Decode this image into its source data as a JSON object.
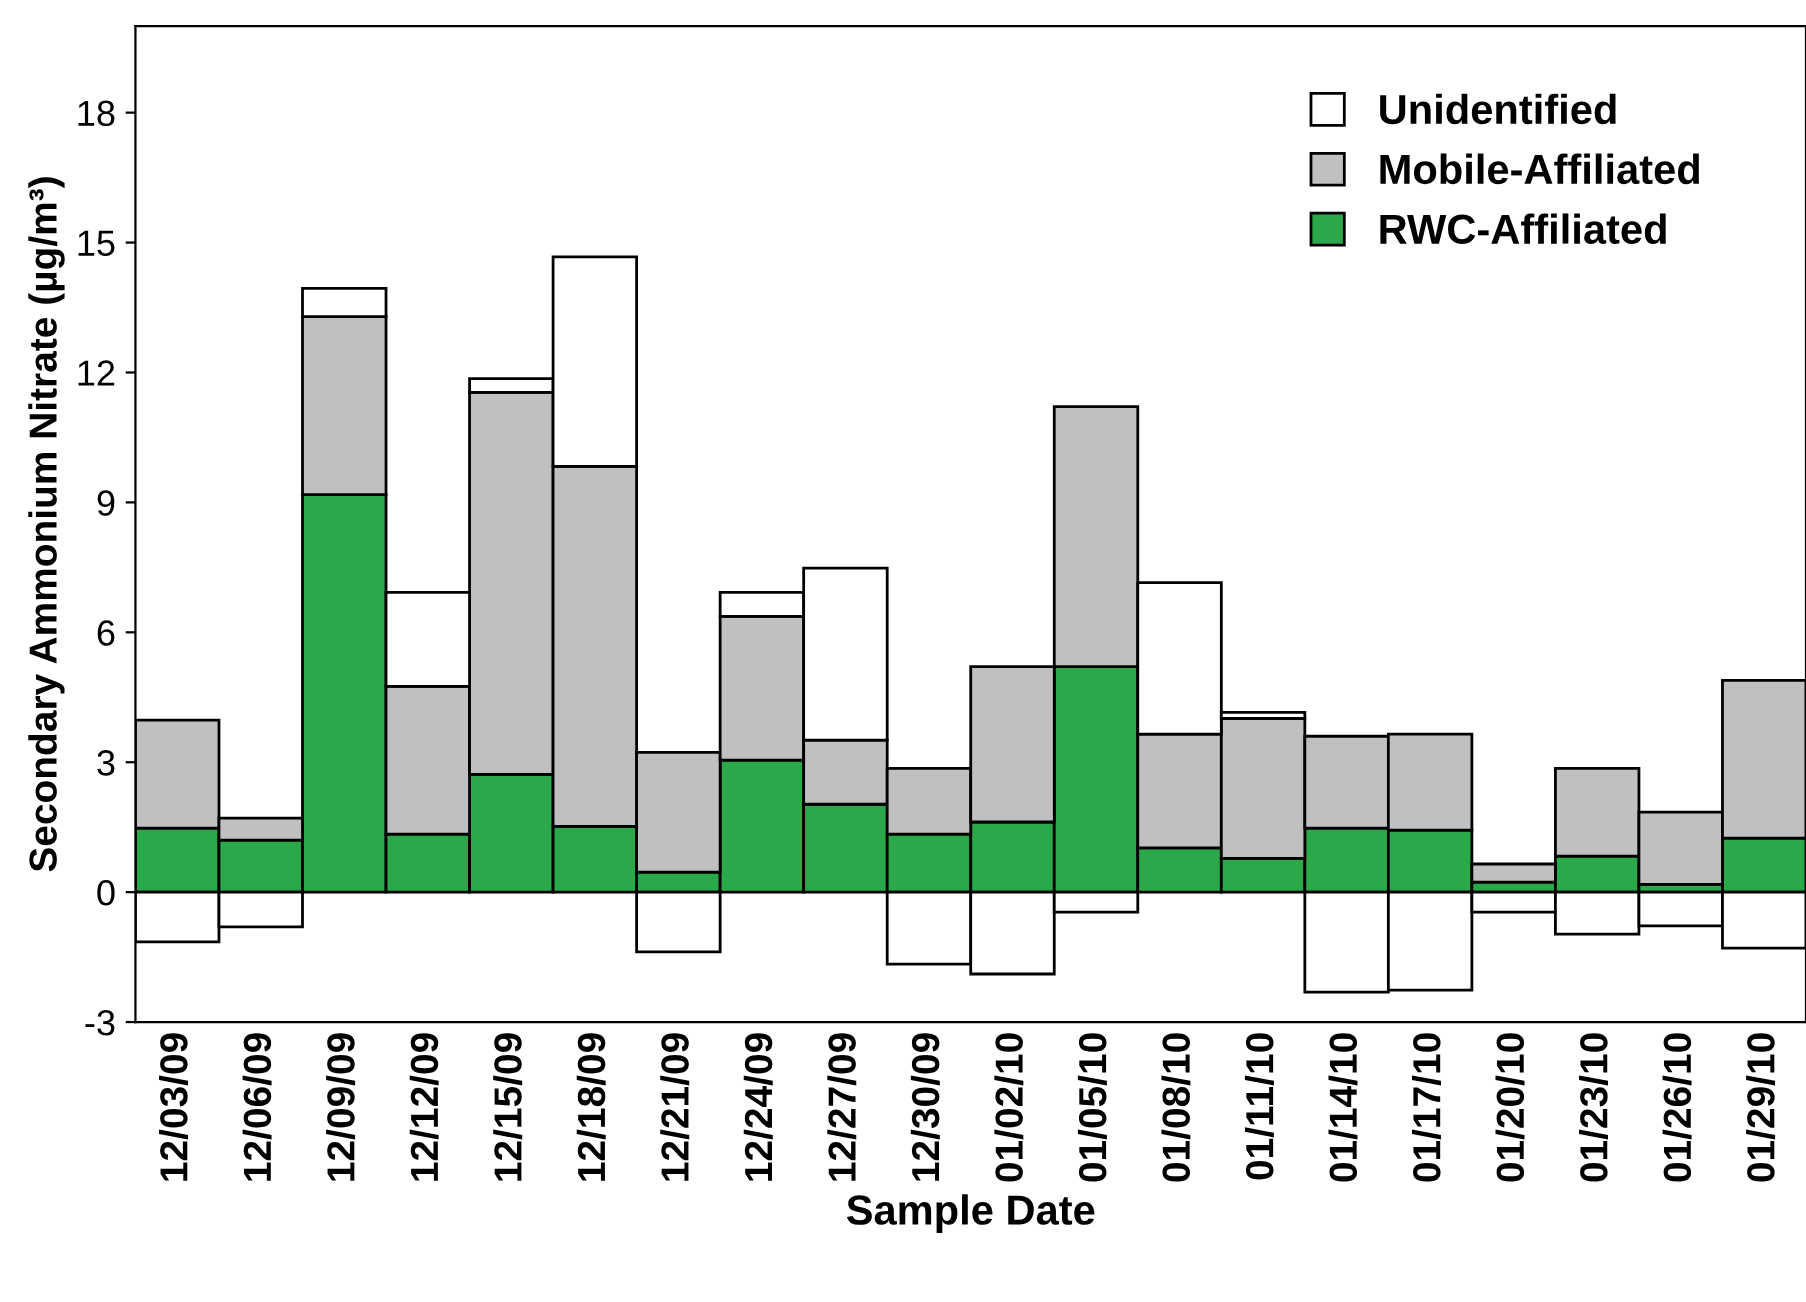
{
  "chart_data": {
    "type": "bar",
    "stacked": true,
    "xlabel": "Sample Date",
    "ylabel": "Secondary Ammonium Nitrate (µg/m³)",
    "categories": [
      "12/03/09",
      "12/06/09",
      "12/09/09",
      "12/12/09",
      "12/15/09",
      "12/18/09",
      "12/21/09",
      "12/24/09",
      "12/27/09",
      "12/30/09",
      "01/02/10",
      "01/05/10",
      "01/08/10",
      "01/11/10",
      "01/14/10",
      "01/17/10",
      "01/20/10",
      "01/23/10",
      "01/26/10",
      "01/29/10"
    ],
    "series": [
      {
        "name": "RWC-Affiliated",
        "color": "#2aa84a",
        "values": [
          1.48,
          1.2,
          9.18,
          1.34,
          2.72,
          1.52,
          0.46,
          3.05,
          2.03,
          1.34,
          1.62,
          5.21,
          1.02,
          0.78,
          1.48,
          1.43,
          0.23,
          0.83,
          0.18,
          1.25
        ]
      },
      {
        "name": "Mobile-Affiliated",
        "color": "#c0c0c2",
        "values": [
          2.49,
          0.51,
          4.11,
          3.41,
          8.82,
          8.31,
          2.77,
          3.32,
          1.48,
          1.52,
          3.59,
          6.0,
          2.63,
          3.23,
          2.12,
          2.22,
          0.42,
          2.03,
          1.67,
          3.64
        ]
      },
      {
        "name": "Unidentified",
        "color": "#ffffff",
        "values": [
          -1.15,
          -0.8,
          0.65,
          2.17,
          0.32,
          4.84,
          -1.38,
          0.55,
          3.97,
          -1.66,
          -1.89,
          -0.46,
          3.5,
          0.14,
          -2.31,
          -2.26,
          -0.46,
          -0.97,
          -0.78,
          -1.29
        ]
      }
    ],
    "ylim": [
      -3,
      20
    ],
    "yticks": [
      -3,
      0,
      3,
      6,
      9,
      12,
      15,
      18
    ],
    "grid": false,
    "legend": "top right"
  }
}
